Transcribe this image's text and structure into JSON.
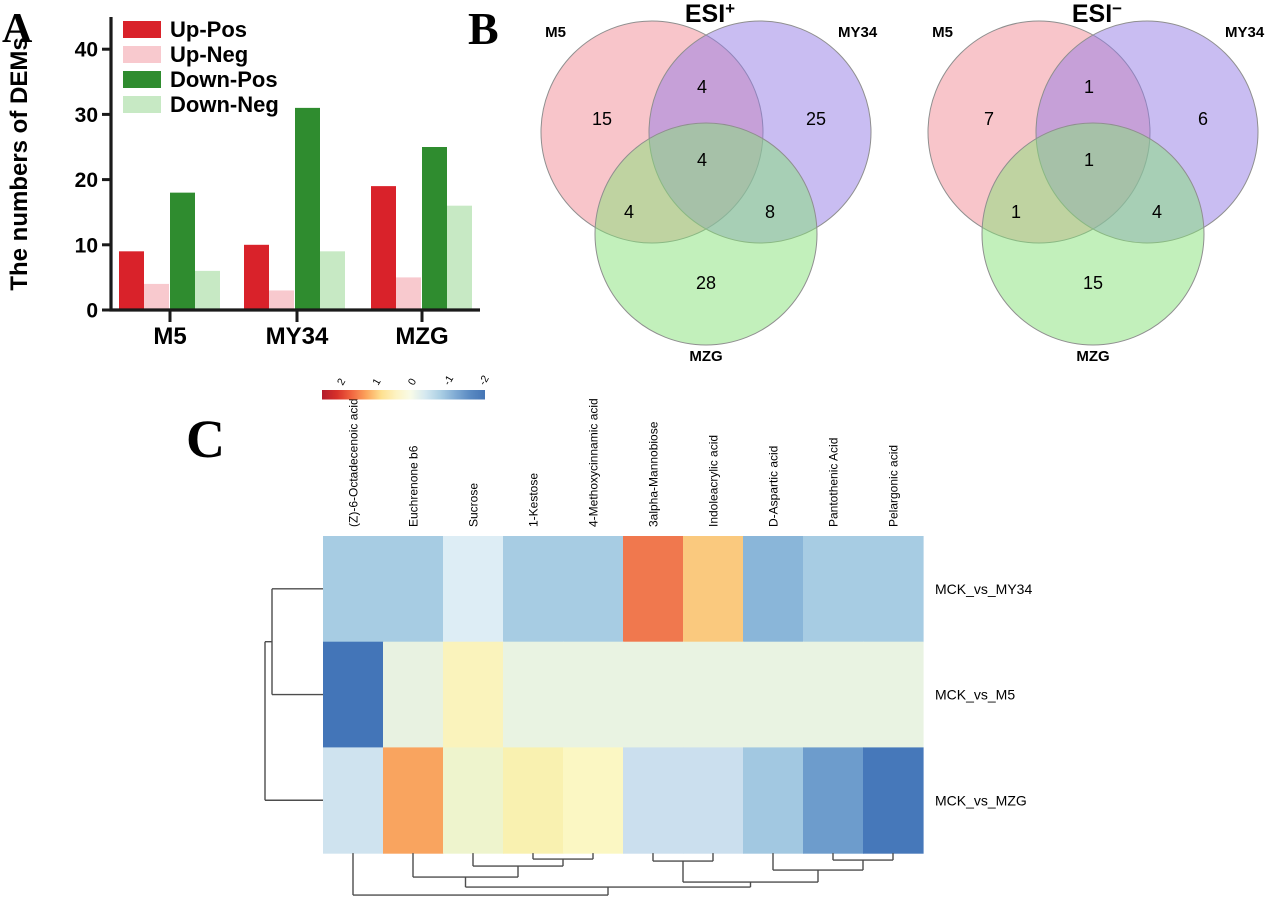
{
  "panels": {
    "a_label": "A",
    "b_label": "B",
    "c_label": "C"
  },
  "chart_data": [
    {
      "id": "dem_barchart",
      "type": "bar",
      "title": "",
      "xlabel": "",
      "ylabel": "The numbers of DEMs",
      "categories": [
        "M5",
        "MY34",
        "MZG"
      ],
      "series": [
        {
          "name": "Up-Pos",
          "color": "#d9222a",
          "values": [
            9,
            10,
            19
          ]
        },
        {
          "name": "Up-Neg",
          "color": "#f8c9ce",
          "values": [
            4,
            3,
            5
          ]
        },
        {
          "name": "Down-Pos",
          "color": "#2f8c2f",
          "values": [
            18,
            31,
            25
          ]
        },
        {
          "name": "Down-Neg",
          "color": "#c7e9c4",
          "values": [
            6,
            9,
            16
          ]
        }
      ],
      "ylim": [
        0,
        45
      ],
      "yticks": [
        0,
        10,
        20,
        30,
        40
      ],
      "legend_position": "top-left",
      "grid": false,
      "axis_color": "#1a1a1a"
    },
    {
      "id": "venn_esi_positive",
      "type": "venn3",
      "title": "ESI",
      "title_sup": "+",
      "sets": [
        "M5",
        "MY34",
        "MZG"
      ],
      "set_base_colors": [
        "#f18b95",
        "#937be5",
        "#85e177"
      ],
      "circle_stroke": "#8f8f8f",
      "regions": {
        "m5_only": 15,
        "my34_only": 25,
        "mzg_only": 28,
        "m5_my34": 4,
        "m5_mzg": 4,
        "my34_mzg": 8,
        "all_three": 4
      }
    },
    {
      "id": "venn_esi_negative",
      "type": "venn3",
      "title": "ESI",
      "title_sup": "−",
      "sets": [
        "M5",
        "MY34",
        "MZG"
      ],
      "set_base_colors": [
        "#f18b95",
        "#937be5",
        "#85e177"
      ],
      "circle_stroke": "#8f8f8f",
      "regions": {
        "m5_only": 7,
        "my34_only": 6,
        "mzg_only": 15,
        "m5_my34": 1,
        "m5_mzg": 1,
        "my34_mzg": 4,
        "all_three": 1
      }
    },
    {
      "id": "dem_heatmap",
      "type": "heatmap",
      "columns": [
        "(Z)-6-Octadecenoic acid",
        "Euchrenone b6",
        "Sucrose",
        "1-Kestose",
        "4-Methoxycinnamic acid",
        "3alpha-Mannobiose",
        "Indoleacrylic acid",
        "D-Aspartic acid",
        "Pantothenic Acid",
        "Pelargonic acid"
      ],
      "rows": [
        "MCK_vs_MY34",
        "MCK_vs_M5",
        "MCK_vs_MZG"
      ],
      "values": [
        [
          -1.0,
          -1.0,
          -0.4,
          -1.0,
          -1.0,
          1.7,
          1.0,
          -1.2,
          -1.0,
          -1.0
        ],
        [
          -2.1,
          -0.15,
          0.4,
          -0.1,
          -0.1,
          -0.1,
          -0.1,
          -0.1,
          -0.1,
          -0.1
        ],
        [
          -0.55,
          1.3,
          0.1,
          0.45,
          0.35,
          -0.6,
          -0.6,
          -1.0,
          -1.5,
          -2.0
        ]
      ],
      "cell_colors": [
        [
          "#a7cce3",
          "#a7cce3",
          "#ddedf5",
          "#a7cce3",
          "#a7cce3",
          "#f0784e",
          "#fac97e",
          "#8ab6d9",
          "#a7cce3",
          "#a7cce3"
        ],
        [
          "#4375b8",
          "#e8f2e1",
          "#faf3bc",
          "#e9f3e2",
          "#e9f3e2",
          "#e9f3e2",
          "#e9f3e2",
          "#e9f3e2",
          "#e9f3e2",
          "#e9f3e2"
        ],
        [
          "#cfe3ef",
          "#f9a45f",
          "#eef4cd",
          "#f9f1b0",
          "#fbf7c3",
          "#cbdfee",
          "#cbdfee",
          "#a2c8e1",
          "#6d9ccc",
          "#4678ba"
        ]
      ],
      "colorbar": {
        "ticks": [
          2,
          1,
          0,
          -1,
          -2
        ],
        "domain": [
          2.5,
          -2.1
        ],
        "gradient": [
          "#b31b2c",
          "#d7302a",
          "#f16640",
          "#fca55d",
          "#fee090",
          "#fdf3c3",
          "#f8fbe8",
          "#d4e8f0",
          "#abcfe4",
          "#80abd4",
          "#5a8ac2",
          "#4575b5"
        ]
      },
      "col_dendrogram": {
        "h": 42,
        "children": [
          {
            "leaf": 0
          },
          {
            "h": 34,
            "children": [
              {
                "h": 24,
                "children": [
                  {
                    "leaf": 1
                  },
                  {
                    "h": 13,
                    "children": [
                      {
                        "leaf": 2
                      },
                      {
                        "h": 6,
                        "children": [
                          {
                            "leaf": 3
                          },
                          {
                            "leaf": 4
                          }
                        ]
                      }
                    ]
                  }
                ]
              },
              {
                "h": 29,
                "children": [
                  {
                    "h": 8,
                    "children": [
                      {
                        "leaf": 5
                      },
                      {
                        "leaf": 6
                      }
                    ]
                  },
                  {
                    "h": 17,
                    "children": [
                      {
                        "leaf": 7
                      },
                      {
                        "h": 7,
                        "children": [
                          {
                            "leaf": 8
                          },
                          {
                            "leaf": 9
                          }
                        ]
                      }
                    ]
                  }
                ]
              }
            ]
          }
        ]
      },
      "row_dendrogram": {
        "h": 58,
        "children": [
          {
            "h": 51,
            "children": [
              {
                "leaf": 0
              },
              {
                "leaf": 1
              }
            ]
          },
          {
            "leaf": 2
          }
        ]
      },
      "dendrogram_color": "#4d4d4d"
    }
  ]
}
